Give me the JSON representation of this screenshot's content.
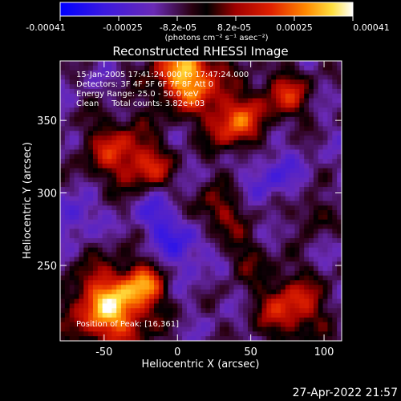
{
  "colorbar": {
    "tick_labels": [
      "-0.00041",
      "-0.00025",
      "-8.2e-05",
      "8.2e-05",
      "0.00025",
      "0.00041"
    ],
    "units_label": "(photons cm⁻² s⁻¹ asec⁻²)",
    "colors": [
      "#0000ff",
      "#5a1fd6",
      "#7a2ea8",
      "#3a0000",
      "#c00000",
      "#ff5a00",
      "#ffa000",
      "#ffff80",
      "#ffffff"
    ]
  },
  "chart_data": {
    "type": "heatmap",
    "title": "Reconstructed RHESSI Image",
    "xlabel": "Heliocentric X (arcsec)",
    "ylabel": "Heliocentric Y (arcsec)",
    "xlim": [
      -80,
      112
    ],
    "ylim": [
      198,
      391
    ],
    "x_ticks": [
      -50,
      0,
      50,
      100
    ],
    "y_ticks": [
      250,
      300,
      350
    ],
    "value_range": [
      -0.00041,
      0.00041
    ],
    "annotations": [
      "15-Jan-2005 17:41:24.000 to 17:47:24.000",
      "Detectors: 3F 4F 5F 6F 7F 8F Att 0",
      "Energy Range: 25.0 - 50.0 keV",
      "Clean     Total counts: 3.82e+03"
    ],
    "peak_label": "Position of Peak: [16,361]",
    "peak_position": [
      16,
      361
    ]
  },
  "footer": {
    "timestamp": "27-Apr-2022 21:57"
  }
}
